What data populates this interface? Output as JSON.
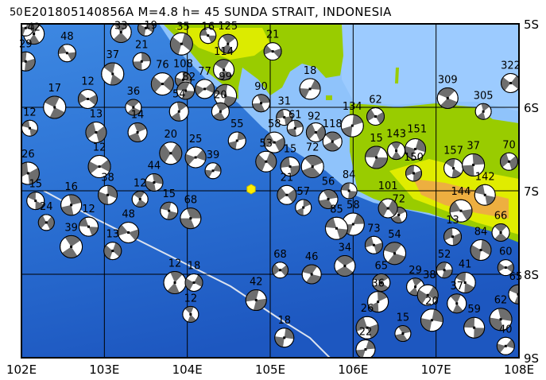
{
  "title": "E201805140856A M=4.8 h= 45 SUNDA STRAIT, INDONESIA",
  "map": {
    "lon_range": [
      102,
      108
    ],
    "lat_range": [
      -9,
      -5
    ],
    "lon_ticks": [
      "102E",
      "103E",
      "104E",
      "105E",
      "106E",
      "107E",
      "108E"
    ],
    "lat_ticks": [
      "5S",
      "6S",
      "7S",
      "8S",
      "9S"
    ],
    "colors": {
      "deep_ocean": "#1e5fc8",
      "ocean": "#3a86e0",
      "shallow": "#9ccbff",
      "land_low": "#99cc00",
      "land_mid": "#e8f000",
      "land_high": "#f0a050",
      "mainshock": "#ffee00",
      "trench": "#dde4f0"
    },
    "mainshock": {
      "lon": 104.77,
      "lat": -6.98
    },
    "events": [
      [
        "16",
        104.25,
        -5.14
      ],
      [
        "125",
        104.49,
        -5.24
      ],
      [
        "35",
        103.93,
        -5.24
      ],
      [
        "21",
        105.03,
        -5.33
      ],
      [
        "114",
        104.44,
        -5.55
      ],
      [
        "108",
        103.95,
        -5.67
      ],
      [
        "77",
        104.21,
        -5.78
      ],
      [
        "99",
        104.46,
        -5.86
      ],
      [
        "90",
        104.89,
        -5.95
      ],
      [
        "18",
        105.48,
        -5.78
      ],
      [
        "31",
        105.17,
        -6.12
      ],
      [
        "118",
        105.75,
        -6.41
      ],
      [
        "134",
        105.99,
        -6.22
      ],
      [
        "62",
        106.27,
        -6.11
      ],
      [
        "309",
        107.14,
        -5.89
      ],
      [
        "305",
        107.57,
        -6.05
      ],
      [
        "322",
        107.9,
        -5.71
      ],
      [
        "15",
        106.28,
        -6.6
      ],
      [
        "143",
        106.52,
        -6.52
      ],
      [
        "151",
        106.75,
        -6.5
      ],
      [
        "150",
        106.73,
        -6.79
      ],
      [
        "157",
        107.21,
        -6.73
      ],
      [
        "37",
        107.45,
        -6.69
      ],
      [
        "70",
        107.88,
        -6.65
      ],
      [
        "142",
        107.59,
        -7.05
      ],
      [
        "72",
        106.55,
        -7.29
      ],
      [
        "101",
        106.42,
        -7.21
      ],
      [
        "144",
        107.3,
        -7.24
      ],
      [
        "66",
        107.78,
        -7.5
      ],
      [
        "84",
        107.54,
        -7.71
      ],
      [
        "60",
        107.84,
        -7.92
      ],
      [
        "65",
        107.99,
        -8.24
      ],
      [
        "62",
        107.78,
        -8.54
      ],
      [
        "40",
        107.84,
        -8.86
      ],
      [
        "59",
        107.46,
        -8.64
      ],
      [
        "15",
        106.6,
        -8.71
      ],
      [
        "22",
        106.15,
        -8.9
      ],
      [
        "26",
        106.17,
        -8.64
      ],
      [
        "65",
        106.34,
        -8.1
      ],
      [
        "36",
        106.3,
        -8.33
      ],
      [
        "68",
        105.12,
        -7.95
      ],
      [
        "46",
        105.5,
        -8.0
      ],
      [
        "12",
        103.85,
        -8.1
      ],
      [
        "18",
        104.08,
        -8.1
      ],
      [
        "42",
        104.83,
        -8.31
      ],
      [
        "12",
        104.04,
        -8.48
      ],
      [
        "18",
        105.17,
        -8.76
      ],
      [
        "26",
        102.08,
        -6.79
      ],
      [
        "15",
        102.17,
        -7.12
      ],
      [
        "16",
        102.6,
        -7.17
      ],
      [
        "24",
        102.3,
        -7.38
      ],
      [
        "12",
        102.81,
        -7.43
      ],
      [
        "39",
        102.6,
        -7.67
      ],
      [
        "13",
        103.1,
        -7.72
      ],
      [
        "48",
        103.29,
        -7.5
      ],
      [
        "12",
        103.43,
        -7.1
      ],
      [
        "38",
        103.04,
        -7.05
      ],
      [
        "12",
        102.94,
        -6.71
      ],
      [
        "15",
        103.78,
        -7.24
      ],
      [
        "68",
        104.04,
        -7.33
      ],
      [
        "39",
        104.31,
        -6.76
      ],
      [
        "15",
        105.24,
        -6.71
      ],
      [
        "72",
        105.51,
        -6.71
      ],
      [
        "55",
        104.6,
        -6.4
      ],
      [
        "58",
        105.05,
        -6.42
      ],
      [
        "36",
        103.35,
        -6.0
      ],
      [
        "54",
        103.9,
        -6.05
      ],
      [
        "76",
        103.7,
        -5.72
      ],
      [
        "82",
        103.98,
        -5.8
      ],
      [
        "42",
        102.15,
        -5.12
      ],
      [
        "50",
        102.05,
        -5.05
      ],
      [
        "29",
        102.05,
        -5.45
      ],
      [
        "37",
        103.1,
        -5.6
      ],
      [
        "21",
        103.45,
        -5.45
      ],
      [
        "13",
        102.9,
        -6.3
      ],
      [
        "12",
        102.1,
        -6.25
      ],
      [
        "14",
        103.4,
        -6.3
      ],
      [
        "20",
        103.8,
        -6.55
      ],
      [
        "48",
        102.55,
        -5.35
      ],
      [
        "33",
        103.2,
        -5.1
      ],
      [
        "19",
        103.5,
        -5.05
      ],
      [
        "12",
        102.8,
        -5.9
      ],
      [
        "17",
        102.4,
        -6.0
      ],
      [
        "44",
        103.6,
        -6.9
      ],
      [
        "25",
        104.1,
        -6.6
      ],
      [
        "84",
        105.95,
        -7.0
      ],
      [
        "56",
        105.7,
        -7.1
      ],
      [
        "58",
        106.0,
        -7.4
      ],
      [
        "73",
        106.25,
        -7.65
      ],
      [
        "34",
        105.9,
        -7.9
      ],
      [
        "57",
        105.4,
        -7.2
      ],
      [
        "21",
        105.2,
        -7.05
      ],
      [
        "54",
        106.5,
        -7.75
      ],
      [
        "29",
        106.75,
        -8.15
      ],
      [
        "38",
        106.9,
        -8.25
      ],
      [
        "52",
        107.1,
        -7.95
      ],
      [
        "37",
        107.25,
        -8.35
      ],
      [
        "20",
        106.95,
        -8.55
      ],
      [
        "13",
        107.2,
        -7.55
      ],
      [
        "41",
        107.35,
        -8.1
      ],
      [
        "61",
        105.3,
        -6.25
      ],
      [
        "92",
        105.55,
        -6.3
      ],
      [
        "85",
        105.8,
        -7.45
      ],
      [
        "20",
        104.4,
        -6.05
      ],
      [
        "53",
        104.95,
        -6.65
      ]
    ]
  }
}
